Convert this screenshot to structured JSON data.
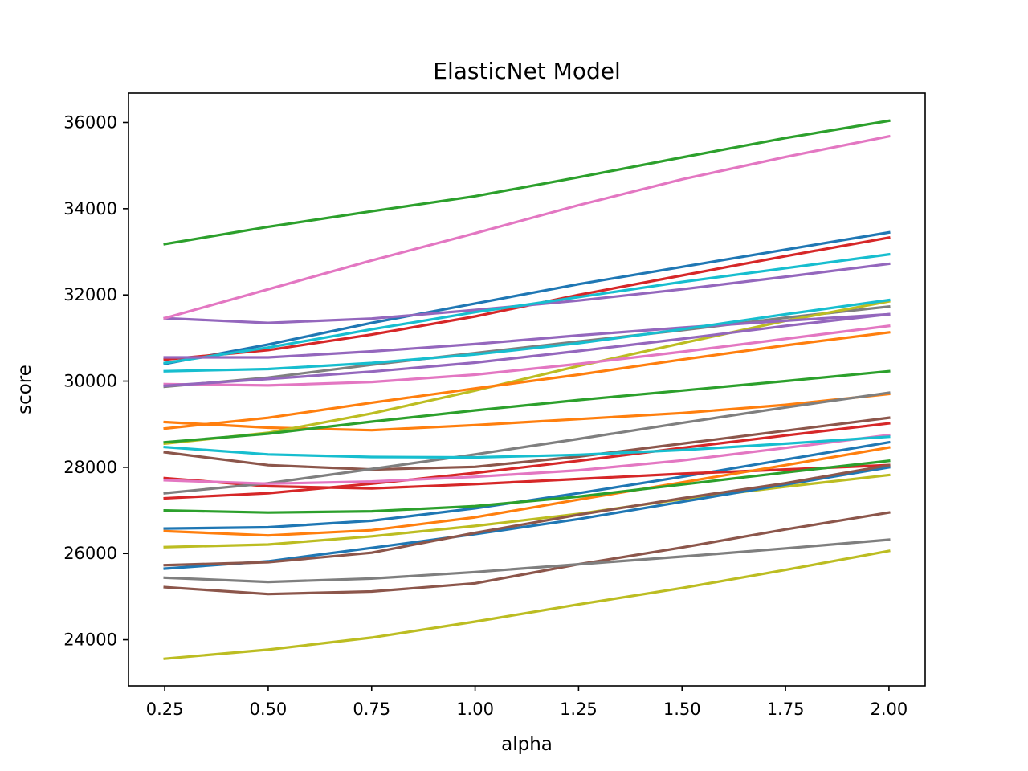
{
  "chart_data": {
    "type": "line",
    "title": "ElasticNet Model",
    "xlabel": "alpha",
    "ylabel": "score",
    "x": [
      0.25,
      0.5,
      0.75,
      1.0,
      1.25,
      1.5,
      1.75,
      2.0
    ],
    "xlim": [
      0.1625,
      2.0875
    ],
    "ylim": [
      22930,
      36680
    ],
    "xticks": [
      0.25,
      0.5,
      0.75,
      1.0,
      1.25,
      1.5,
      1.75,
      2.0
    ],
    "xtick_labels": [
      "0.25",
      "0.50",
      "0.75",
      "1.00",
      "1.25",
      "1.50",
      "1.75",
      "2.00"
    ],
    "yticks": [
      24000,
      26000,
      28000,
      30000,
      32000,
      34000,
      36000
    ],
    "ytick_labels": [
      "24000",
      "26000",
      "28000",
      "30000",
      "32000",
      "34000",
      "36000"
    ],
    "grid": false,
    "legend": "none",
    "series": [
      {
        "color": "#1f77b4",
        "values": [
          30400,
          30850,
          31350,
          31800,
          32250,
          32650,
          33050,
          33450
        ]
      },
      {
        "color": "#ff7f0e",
        "values": [
          29050,
          28920,
          28860,
          28980,
          29120,
          29260,
          29450,
          29700
        ]
      },
      {
        "color": "#2ca02c",
        "values": [
          33180,
          33580,
          33940,
          34290,
          34730,
          35190,
          35640,
          36040
        ]
      },
      {
        "color": "#d62728",
        "values": [
          30500,
          30720,
          31080,
          31500,
          32000,
          32450,
          32900,
          33330
        ]
      },
      {
        "color": "#9467bd",
        "values": [
          31460,
          31350,
          31450,
          31650,
          31870,
          32130,
          32420,
          32720
        ]
      },
      {
        "color": "#8c564b",
        "values": [
          28350,
          28050,
          27950,
          28010,
          28250,
          28550,
          28850,
          29150
        ]
      },
      {
        "color": "#e377c2",
        "values": [
          31460,
          32130,
          32800,
          33430,
          34080,
          34680,
          35200,
          35680
        ]
      },
      {
        "color": "#7f7f7f",
        "values": [
          29870,
          30080,
          30380,
          30650,
          30920,
          31180,
          31470,
          31730
        ]
      },
      {
        "color": "#bcbd22",
        "values": [
          28550,
          28800,
          29250,
          29780,
          30350,
          30880,
          31400,
          31850
        ]
      },
      {
        "color": "#17becf",
        "values": [
          30420,
          30780,
          31200,
          31600,
          31950,
          32300,
          32620,
          32940
        ]
      },
      {
        "color": "#1f77b4",
        "values": [
          26580,
          26610,
          26760,
          27050,
          27400,
          27780,
          28180,
          28580
        ]
      },
      {
        "color": "#ff7f0e",
        "values": [
          28900,
          29150,
          29500,
          29830,
          30150,
          30500,
          30830,
          31130
        ]
      },
      {
        "color": "#2ca02c",
        "values": [
          28580,
          28780,
          29060,
          29320,
          29560,
          29780,
          30000,
          30230
        ]
      },
      {
        "color": "#d62728",
        "values": [
          27750,
          27560,
          27510,
          27610,
          27730,
          27850,
          27950,
          28050
        ]
      },
      {
        "color": "#9467bd",
        "values": [
          30550,
          30550,
          30690,
          30860,
          31060,
          31240,
          31400,
          31550
        ]
      },
      {
        "color": "#8c564b",
        "values": [
          25220,
          25060,
          25120,
          25310,
          25750,
          26140,
          26560,
          26950
        ]
      },
      {
        "color": "#e377c2",
        "values": [
          29930,
          29900,
          29980,
          30150,
          30400,
          30680,
          30980,
          31280
        ]
      },
      {
        "color": "#7f7f7f",
        "values": [
          27400,
          27630,
          27960,
          28300,
          28660,
          29030,
          29390,
          29730
        ]
      },
      {
        "color": "#bcbd22",
        "values": [
          26150,
          26210,
          26400,
          26640,
          26920,
          27260,
          27550,
          27820
        ]
      },
      {
        "color": "#17becf",
        "values": [
          30230,
          30280,
          30420,
          30620,
          30880,
          31200,
          31550,
          31880
        ]
      },
      {
        "color": "#1f77b4",
        "values": [
          25650,
          25820,
          26130,
          26450,
          26800,
          27200,
          27600,
          28000
        ]
      },
      {
        "color": "#ff7f0e",
        "values": [
          26520,
          26420,
          26540,
          26840,
          27250,
          27650,
          28050,
          28460
        ]
      },
      {
        "color": "#2ca02c",
        "values": [
          27000,
          26950,
          26980,
          27100,
          27320,
          27600,
          27880,
          28150
        ]
      },
      {
        "color": "#d62728",
        "values": [
          27280,
          27400,
          27620,
          27870,
          28150,
          28450,
          28740,
          29020
        ]
      },
      {
        "color": "#9467bd",
        "values": [
          29890,
          30050,
          30220,
          30430,
          30700,
          30980,
          31280,
          31550
        ]
      },
      {
        "color": "#8c564b",
        "values": [
          25730,
          25800,
          26020,
          26480,
          26900,
          27280,
          27630,
          28050
        ]
      },
      {
        "color": "#e377c2",
        "values": [
          27700,
          27620,
          27670,
          27780,
          27930,
          28160,
          28450,
          28750
        ]
      },
      {
        "color": "#7f7f7f",
        "values": [
          25440,
          25340,
          25420,
          25570,
          25750,
          25930,
          26120,
          26320
        ]
      },
      {
        "color": "#bcbd22",
        "values": [
          23560,
          23770,
          24050,
          24420,
          24820,
          25200,
          25620,
          26060
        ]
      },
      {
        "color": "#17becf",
        "values": [
          28470,
          28300,
          28240,
          28230,
          28290,
          28400,
          28550,
          28710
        ]
      }
    ]
  }
}
